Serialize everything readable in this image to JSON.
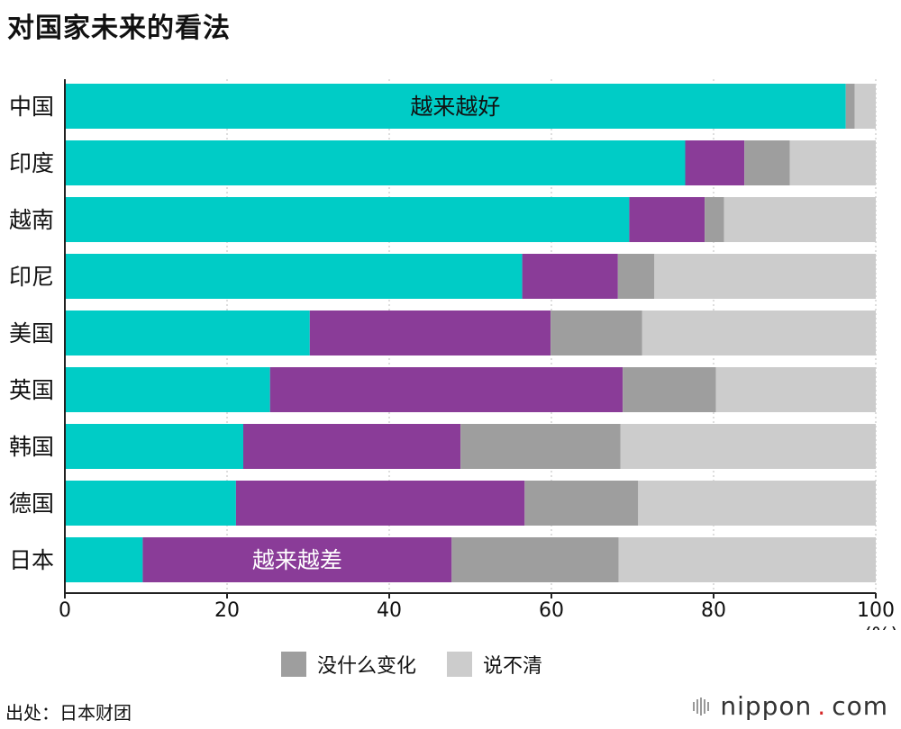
{
  "title": "对国家未来的看法",
  "chart_data": {
    "type": "bar",
    "orientation": "horizontal",
    "stacked": true,
    "categories": [
      "中国",
      "印度",
      "越南",
      "印尼",
      "美国",
      "英国",
      "韩国",
      "德国",
      "日本"
    ],
    "series": [
      {
        "name": "越来越好",
        "color": "#00CCC6",
        "values": [
          96.3,
          76.5,
          69.6,
          56.4,
          30.2,
          25.3,
          22.0,
          21.1,
          9.6
        ]
      },
      {
        "name": "越来越差",
        "color": "#8A3C98",
        "values": [
          0,
          7.3,
          9.3,
          11.8,
          29.7,
          43.5,
          26.8,
          35.6,
          38.1
        ]
      },
      {
        "name": "没什么变化",
        "color": "#9E9E9E",
        "values": [
          1.1,
          5.6,
          2.4,
          4.5,
          11.3,
          11.5,
          19.7,
          14.0,
          20.6
        ]
      },
      {
        "name": "说不清",
        "color": "#CCCCCC",
        "values": [
          2.6,
          10.6,
          18.7,
          27.3,
          28.8,
          19.7,
          31.5,
          29.3,
          31.7
        ]
      }
    ],
    "inline_labels": [
      {
        "text": "越来越好",
        "series": 0,
        "category": 0
      },
      {
        "text": "越来越差",
        "series": 1,
        "category": 8
      }
    ],
    "xlim": [
      0,
      100
    ],
    "xticks": [
      0,
      20,
      40,
      60,
      80,
      100
    ],
    "xunit": "(%)",
    "grid": true
  },
  "legend": {
    "items": [
      {
        "label": "没什么变化",
        "color": "#9E9E9E"
      },
      {
        "label": "说不清",
        "color": "#CCCCCC"
      }
    ]
  },
  "source": "出处：日本财团",
  "brand": {
    "name": "nippon",
    "dot": ".",
    "suffix": "com"
  }
}
